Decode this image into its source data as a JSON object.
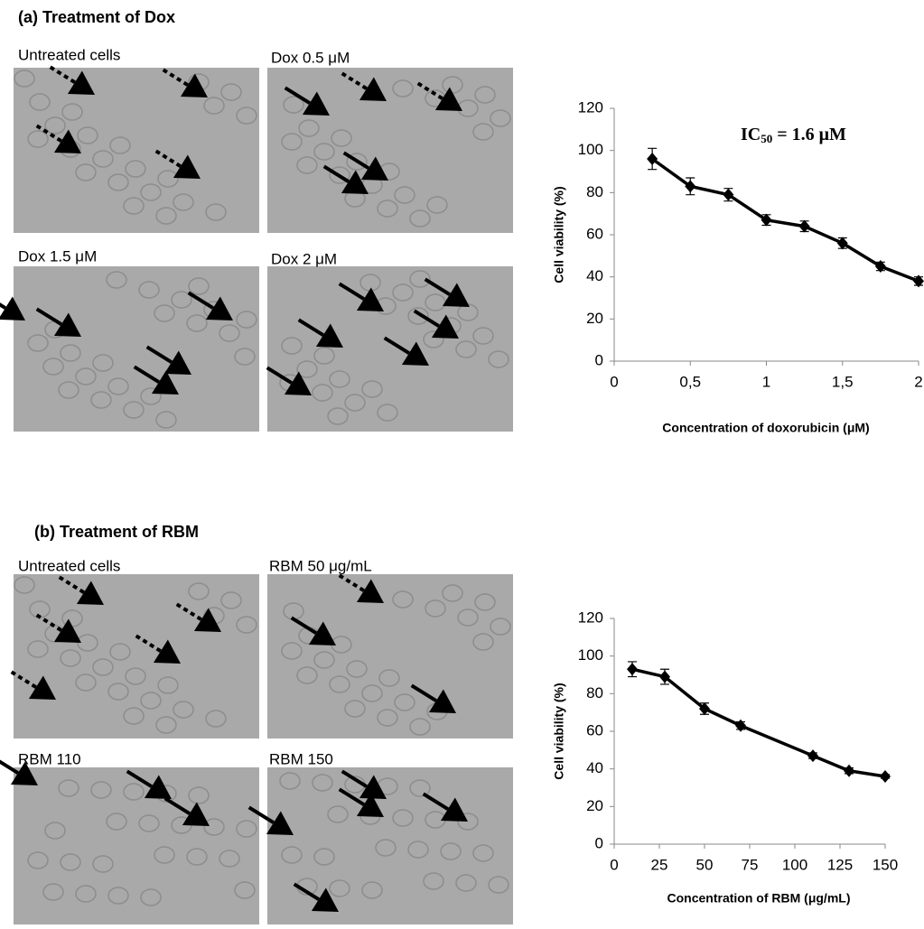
{
  "panels": [
    {
      "title": "(a) Treatment of Dox",
      "image_labels": [
        "Untreated cells",
        "Dox 0.5 μM",
        "Dox 1.5 μM",
        "Dox 2 μM"
      ]
    },
    {
      "title": "(b) Treatment of RBM",
      "image_labels": [
        "Untreated cells",
        "RBM 50 μg/mL",
        "RBM 110",
        "RBM 150"
      ]
    }
  ],
  "chart_data": [
    {
      "type": "line",
      "y_label": "Cell viability (%)",
      "x_label": "Concentration of doxorubicin (μM)",
      "annotation": [
        "IC",
        "50",
        " = 1.6 μM"
      ],
      "x": [
        0.25,
        0.5,
        0.75,
        1,
        1.25,
        1.5,
        1.75,
        2
      ],
      "series": [
        {
          "color": "#000000",
          "values": [
            96,
            83,
            79,
            67,
            64,
            56,
            45,
            38
          ],
          "errors": [
            5,
            4,
            3,
            2.5,
            2.5,
            2.5,
            2,
            2
          ]
        }
      ],
      "xlim": [
        0,
        2
      ],
      "xticks": [
        0,
        {
          "value": 0.5,
          "label": "0,5"
        },
        1,
        {
          "value": 1.5,
          "label": "1,5"
        },
        2
      ],
      "ylim": [
        0,
        120
      ],
      "yticks": [
        0,
        20,
        40,
        60,
        80,
        100,
        120
      ]
    },
    {
      "type": "line",
      "y_label": "Cell viability (%)",
      "x_label": "Concentration  of RBM (μg/mL)",
      "x": [
        10,
        28,
        50,
        70,
        110,
        130,
        150
      ],
      "series": [
        {
          "color": "#000000",
          "values": [
            93,
            89,
            72,
            63,
            47,
            39,
            36
          ],
          "errors": [
            4,
            4,
            3,
            2,
            1.5,
            1.5,
            1
          ]
        }
      ],
      "xlim": [
        0,
        150
      ],
      "xticks": [
        0,
        25,
        50,
        75,
        100,
        125,
        150
      ],
      "ylim": [
        0,
        120
      ],
      "yticks": [
        0,
        20,
        40,
        60,
        80,
        100,
        120
      ]
    }
  ]
}
